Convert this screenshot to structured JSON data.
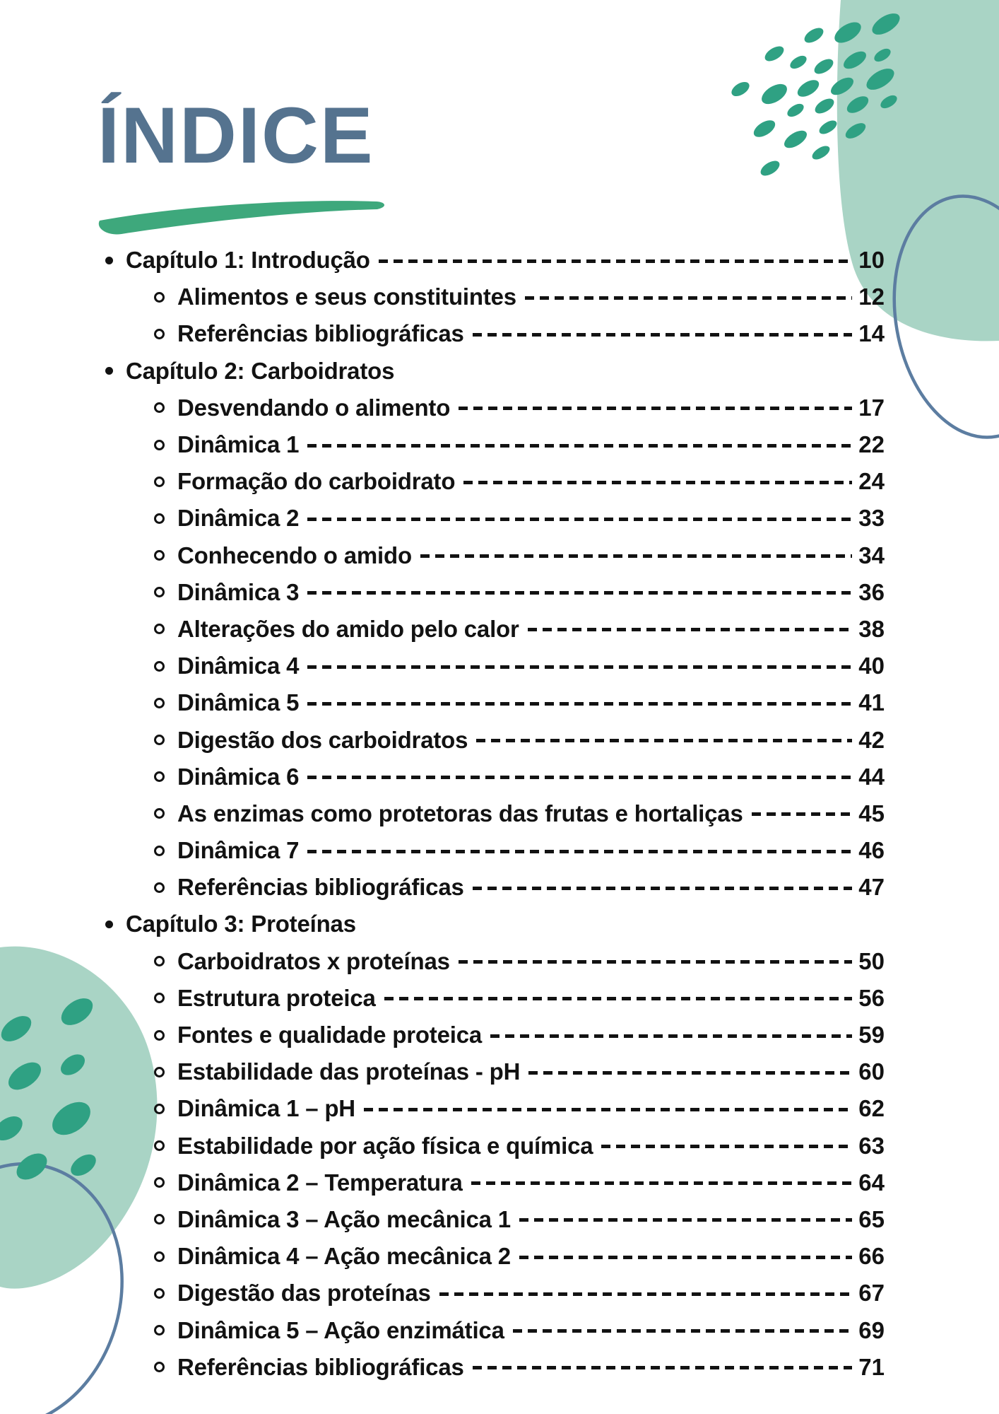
{
  "title": "ÍNDICE",
  "toc": {
    "items": [
      {
        "label": "Capítulo 1: Introdução",
        "page": "10",
        "level": 1
      },
      {
        "label": "Alimentos e seus constituintes",
        "page": "12",
        "level": 2
      },
      {
        "label": "Referências bibliográficas",
        "page": "14",
        "level": 2
      },
      {
        "label": "Capítulo 2: Carboidratos",
        "page": null,
        "level": 1
      },
      {
        "label": "Desvendando o alimento",
        "page": "17",
        "level": 2
      },
      {
        "label": "Dinâmica 1",
        "page": "22",
        "level": 2
      },
      {
        "label": "Formação do carboidrato",
        "page": "24",
        "level": 2
      },
      {
        "label": "Dinâmica 2",
        "page": "33",
        "level": 2
      },
      {
        "label": "Conhecendo o amido",
        "page": "34",
        "level": 2
      },
      {
        "label": "Dinâmica 3",
        "page": "36",
        "level": 2
      },
      {
        "label": "Alterações do amido pelo calor",
        "page": "38",
        "level": 2
      },
      {
        "label": "Dinâmica 4",
        "page": "40",
        "level": 2
      },
      {
        "label": "Dinâmica 5",
        "page": "41",
        "level": 2
      },
      {
        "label": "Digestão dos carboidratos",
        "page": "42",
        "level": 2
      },
      {
        "label": "Dinâmica 6",
        "page": "44",
        "level": 2
      },
      {
        "label": "As enzimas como protetoras das frutas e hortaliças",
        "page": "45",
        "level": 2
      },
      {
        "label": "Dinâmica 7",
        "page": "46",
        "level": 2
      },
      {
        "label": "Referências bibliográficas",
        "page": "47",
        "level": 2
      },
      {
        "label": "Capítulo 3: Proteínas",
        "page": null,
        "level": 1
      },
      {
        "label": "Carboidratos x proteínas",
        "page": "50",
        "level": 2
      },
      {
        "label": "Estrutura proteica",
        "page": "56",
        "level": 2
      },
      {
        "label": "Fontes e qualidade proteica",
        "page": "59",
        "level": 2
      },
      {
        "label": "Estabilidade das proteínas - pH",
        "page": "60",
        "level": 2
      },
      {
        "label": "Dinâmica 1 – pH",
        "page": "62",
        "level": 2
      },
      {
        "label": "Estabilidade por ação física e química",
        "page": "63",
        "level": 2
      },
      {
        "label": "Dinâmica 2 – Temperatura",
        "page": "64",
        "level": 2
      },
      {
        "label": "Dinâmica 3 – Ação mecânica 1",
        "page": "65",
        "level": 2
      },
      {
        "label": "Dinâmica 4 – Ação mecânica 2",
        "page": "66",
        "level": 2
      },
      {
        "label": "Digestão das proteínas",
        "page": "67",
        "level": 2
      },
      {
        "label": "Dinâmica 5 – Ação enzimática",
        "page": "69",
        "level": 2
      },
      {
        "label": "Referências bibliográficas",
        "page": "71",
        "level": 2
      }
    ]
  },
  "bullets": {
    "chapter": "solid-dot",
    "section": "hollow-circle"
  },
  "colors": {
    "title_blue": "#55738f",
    "text": "#121212",
    "underline_green": "#3ea87c",
    "dot_green": "#2fa183",
    "blob_green": "#a9d4c5",
    "ring_blue": "#5c7da1",
    "background": "#ffffff"
  }
}
